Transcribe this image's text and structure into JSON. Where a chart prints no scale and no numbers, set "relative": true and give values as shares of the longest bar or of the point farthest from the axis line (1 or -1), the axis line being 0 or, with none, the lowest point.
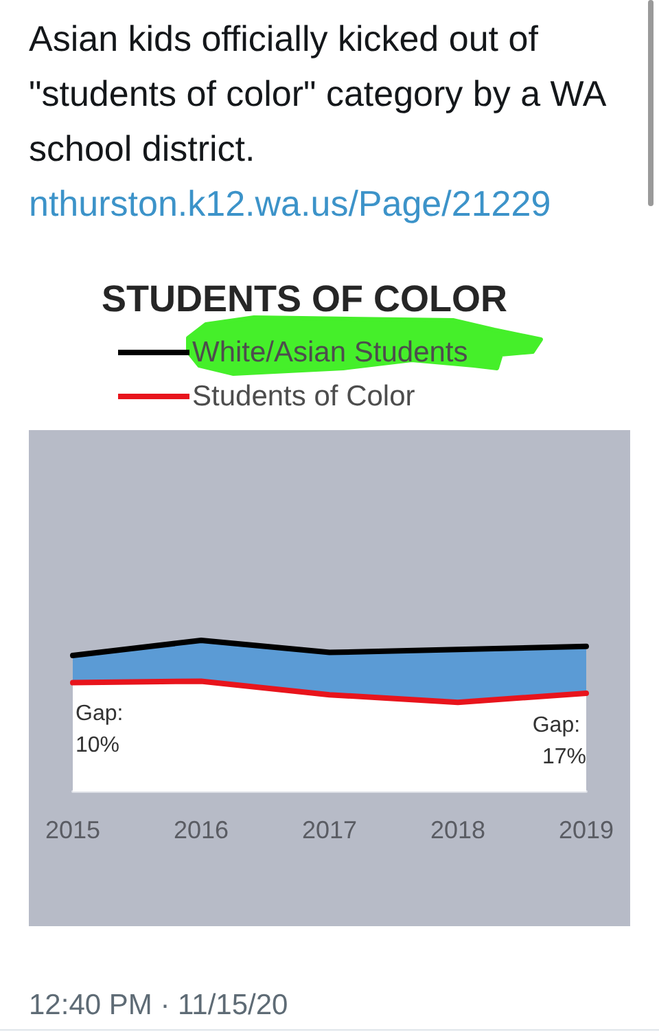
{
  "chart_data": {
    "type": "area",
    "title": "STUDENTS OF COLOR",
    "categories": [
      "2015",
      "2016",
      "2017",
      "2018",
      "2019"
    ],
    "series": [
      {
        "name": "White/Asian Students",
        "color": "#000000",
        "values": [
          0.9,
          1,
          0.92,
          0.94,
          0.96
        ]
      },
      {
        "name": "Students of Color",
        "color": "#e8141c",
        "values": [
          0.72,
          0.73,
          0.64,
          0.59,
          0.65
        ]
      }
    ],
    "relative": true,
    "legend": "top left",
    "marker": "none",
    "annotations": [
      "Asian kids officially kicked out of \"students of color\" category by a WA school district.",
      "nthurston.k12.wa.us/Page/21229",
      {
        "text": "Gap: 10%",
        "x": "2015",
        "y": 0.41
      },
      {
        "text": "Gap: 17%",
        "x": "2019",
        "y": 0.33
      },
      "12:40 PM · 11/15/20"
    ]
  }
}
